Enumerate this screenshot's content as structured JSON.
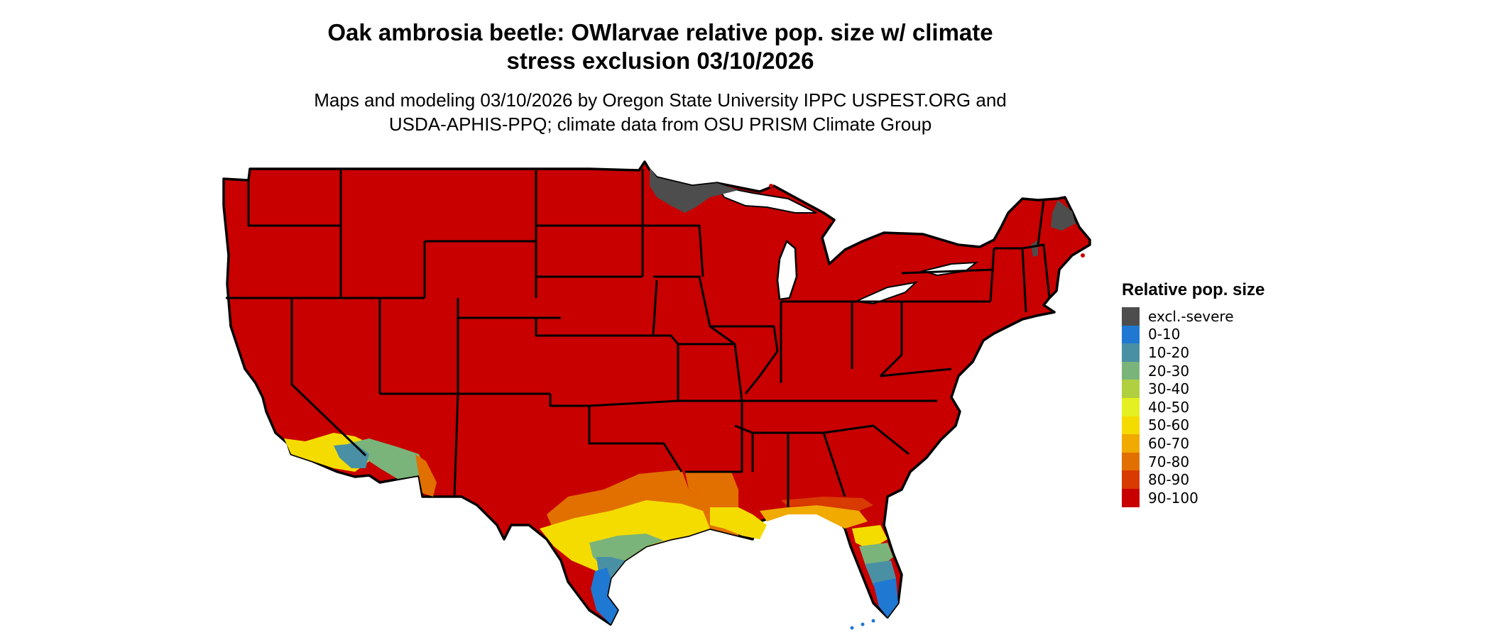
{
  "title_line1": "Oak ambrosia beetle: OWlarvae relative pop. size w/ climate",
  "title_line2": "stress exclusion 03/10/2026",
  "subtitle_line1": "Maps and modeling 03/10/2026 by Oregon State University IPPC USPEST.ORG and",
  "subtitle_line2": "USDA-APHIS-PPQ; climate data from OSU PRISM Climate Group",
  "legend": {
    "title": "Relative pop. size",
    "items": [
      {
        "label": "excl.-severe",
        "color": "#4d4d4d"
      },
      {
        "label": "0-10",
        "color": "#1f78d1"
      },
      {
        "label": "10-20",
        "color": "#4a90a4"
      },
      {
        "label": "20-30",
        "color": "#7ab47a"
      },
      {
        "label": "30-40",
        "color": "#b0d040"
      },
      {
        "label": "40-50",
        "color": "#e4f020"
      },
      {
        "label": "50-60",
        "color": "#f5dc00"
      },
      {
        "label": "60-70",
        "color": "#f0aa00"
      },
      {
        "label": "70-80",
        "color": "#e27000"
      },
      {
        "label": "80-90",
        "color": "#d83a00"
      },
      {
        "label": "90-100",
        "color": "#c80000"
      }
    ]
  },
  "map": {
    "region": "conterminous United States",
    "base_color": "#c80000",
    "border_color": "#000000",
    "excluded_color": "#4d4d4d"
  }
}
